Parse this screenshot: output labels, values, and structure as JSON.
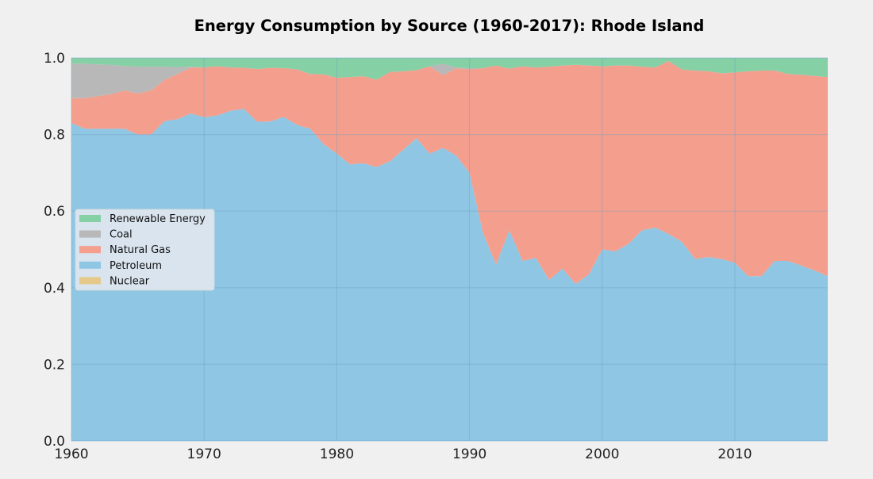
{
  "chart_data": {
    "type": "area",
    "stacked": true,
    "normalized": true,
    "title": "Energy Consumption by Source (1960-2017): Rhode Island",
    "xlabel": "",
    "ylabel": "",
    "xlim": [
      1960,
      2017
    ],
    "ylim": [
      0,
      1
    ],
    "x_ticks": [
      1960,
      1970,
      1980,
      1990,
      2000,
      2010
    ],
    "y_ticks": [
      0.0,
      0.2,
      0.4,
      0.6,
      0.8,
      1.0
    ],
    "y_tick_labels": [
      "0.0",
      "0.2",
      "0.4",
      "0.6",
      "0.8",
      "1.0"
    ],
    "grid": true,
    "legend_position": "center-left",
    "background_color": "#f0f0f0",
    "grid_color": "#cbcbcb",
    "x": [
      1960,
      1961,
      1962,
      1963,
      1964,
      1965,
      1966,
      1967,
      1968,
      1969,
      1970,
      1971,
      1972,
      1973,
      1974,
      1975,
      1976,
      1977,
      1978,
      1979,
      1980,
      1981,
      1982,
      1983,
      1984,
      1985,
      1986,
      1987,
      1988,
      1989,
      1990,
      1991,
      1992,
      1993,
      1994,
      1995,
      1996,
      1997,
      1998,
      1999,
      2000,
      2001,
      2002,
      2003,
      2004,
      2005,
      2006,
      2007,
      2008,
      2009,
      2010,
      2011,
      2012,
      2013,
      2014,
      2015,
      2016,
      2017
    ],
    "series": [
      {
        "name": "Nuclear",
        "color": "#e5c98a",
        "values": [
          0,
          0,
          0,
          0,
          0,
          0,
          0,
          0,
          0,
          0,
          0,
          0,
          0,
          0,
          0,
          0,
          0,
          0,
          0,
          0,
          0,
          0,
          0,
          0,
          0,
          0,
          0,
          0,
          0,
          0,
          0,
          0,
          0,
          0,
          0,
          0,
          0,
          0,
          0,
          0,
          0,
          0,
          0,
          0,
          0,
          0,
          0,
          0,
          0,
          0,
          0,
          0,
          0,
          0,
          0,
          0,
          0,
          0
        ]
      },
      {
        "name": "Petroleum",
        "color": "#8fc6e3",
        "values": [
          0.83,
          0.815,
          0.815,
          0.815,
          0.815,
          0.8,
          0.8,
          0.835,
          0.84,
          0.855,
          0.845,
          0.85,
          0.862,
          0.867,
          0.833,
          0.834,
          0.846,
          0.825,
          0.815,
          0.775,
          0.75,
          0.722,
          0.725,
          0.715,
          0.73,
          0.76,
          0.79,
          0.75,
          0.765,
          0.745,
          0.7,
          0.545,
          0.46,
          0.55,
          0.47,
          0.478,
          0.42,
          0.45,
          0.41,
          0.435,
          0.5,
          0.495,
          0.515,
          0.55,
          0.557,
          0.54,
          0.52,
          0.475,
          0.48,
          0.475,
          0.465,
          0.43,
          0.43,
          0.47,
          0.47,
          0.458,
          0.445,
          0.43
        ]
      },
      {
        "name": "Natural Gas",
        "color": "#f49f8e",
        "values": [
          0.065,
          0.08,
          0.085,
          0.09,
          0.1,
          0.107,
          0.115,
          0.107,
          0.118,
          0.12,
          0.13,
          0.128,
          0.113,
          0.107,
          0.138,
          0.14,
          0.127,
          0.145,
          0.143,
          0.182,
          0.198,
          0.228,
          0.227,
          0.228,
          0.233,
          0.205,
          0.178,
          0.228,
          0.19,
          0.228,
          0.27,
          0.428,
          0.52,
          0.422,
          0.508,
          0.497,
          0.557,
          0.53,
          0.572,
          0.545,
          0.478,
          0.485,
          0.465,
          0.427,
          0.418,
          0.452,
          0.45,
          0.492,
          0.485,
          0.485,
          0.497,
          0.535,
          0.537,
          0.497,
          0.488,
          0.498,
          0.508,
          0.52
        ]
      },
      {
        "name": "Coal",
        "color": "#b8b8b8",
        "values": [
          0.09,
          0.09,
          0.083,
          0.077,
          0.064,
          0.07,
          0.062,
          0.035,
          0.018,
          0.002,
          0,
          0,
          0,
          0,
          0,
          0,
          0,
          0,
          0,
          0,
          0,
          0,
          0,
          0,
          0,
          0,
          0,
          0,
          0.03,
          0.002,
          0.003,
          0,
          0,
          0,
          0,
          0,
          0,
          0,
          0,
          0,
          0,
          0,
          0,
          0,
          0,
          0,
          0,
          0,
          0,
          0,
          0,
          0,
          0,
          0,
          0,
          0,
          0,
          0
        ]
      },
      {
        "name": "Renewable Energy",
        "color": "#86d0a6",
        "values": [
          0.015,
          0.015,
          0.017,
          0.018,
          0.021,
          0.023,
          0.023,
          0.023,
          0.024,
          0.023,
          0.025,
          0.022,
          0.025,
          0.026,
          0.029,
          0.026,
          0.027,
          0.03,
          0.042,
          0.043,
          0.052,
          0.05,
          0.048,
          0.057,
          0.037,
          0.035,
          0.032,
          0.022,
          0.015,
          0.025,
          0.027,
          0.027,
          0.02,
          0.028,
          0.022,
          0.025,
          0.023,
          0.02,
          0.018,
          0.02,
          0.022,
          0.02,
          0.02,
          0.023,
          0.025,
          0.008,
          0.03,
          0.033,
          0.035,
          0.04,
          0.038,
          0.035,
          0.033,
          0.033,
          0.042,
          0.044,
          0.047,
          0.05
        ]
      }
    ],
    "legend_order": [
      "Renewable Energy",
      "Coal",
      "Natural Gas",
      "Petroleum",
      "Nuclear"
    ]
  }
}
